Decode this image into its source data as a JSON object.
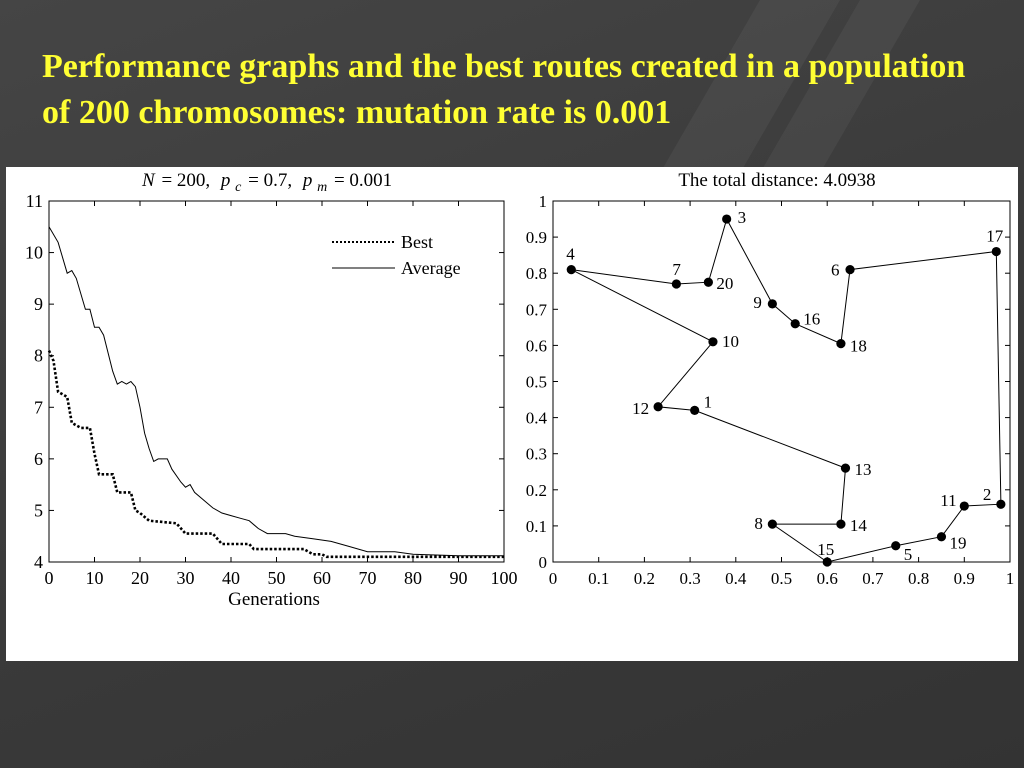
{
  "slide": {
    "title": "Performance graphs and the best routes created in a population of 200 chromosomes: mutation rate is 0.001",
    "title_color": "#ffff33",
    "background_color": "#3c3c3c"
  },
  "chart_data": [
    {
      "type": "line",
      "title_parts": {
        "N": "N",
        "eq_n": "= 200,",
        "pc_p": "p",
        "pc_sub": "c",
        "eq_pc": "= 0.7,",
        "pm_p": "p",
        "pm_sub": "m",
        "eq_pm": "= 0.001"
      },
      "xlabel": "Generations",
      "ylabel": "",
      "xlim": [
        0,
        100
      ],
      "ylim": [
        4,
        11
      ],
      "xticks": [
        0,
        10,
        20,
        30,
        40,
        50,
        60,
        70,
        80,
        90,
        100
      ],
      "yticks": [
        4,
        5,
        6,
        7,
        8,
        9,
        10,
        11
      ],
      "grid": false,
      "legend_position": "top-right",
      "series": [
        {
          "name": "Best",
          "style": "dotted",
          "points": [
            [
              0,
              8.1
            ],
            [
              1,
              7.9
            ],
            [
              2,
              7.3
            ],
            [
              4,
              7.2
            ],
            [
              5,
              6.7
            ],
            [
              7,
              6.6
            ],
            [
              9,
              6.6
            ],
            [
              10,
              6.1
            ],
            [
              11,
              5.7
            ],
            [
              14,
              5.7
            ],
            [
              15,
              5.35
            ],
            [
              18,
              5.35
            ],
            [
              19,
              5.0
            ],
            [
              20,
              4.95
            ],
            [
              22,
              4.8
            ],
            [
              28,
              4.75
            ],
            [
              30,
              4.55
            ],
            [
              36,
              4.55
            ],
            [
              38,
              4.35
            ],
            [
              44,
              4.35
            ],
            [
              45,
              4.25
            ],
            [
              56,
              4.25
            ],
            [
              58,
              4.15
            ],
            [
              60,
              4.15
            ],
            [
              61,
              4.1
            ],
            [
              100,
              4.1
            ]
          ]
        },
        {
          "name": "Average",
          "style": "solid",
          "points": [
            [
              0,
              10.5
            ],
            [
              2,
              10.2
            ],
            [
              4,
              9.6
            ],
            [
              5,
              9.65
            ],
            [
              6,
              9.5
            ],
            [
              8,
              8.9
            ],
            [
              9,
              8.9
            ],
            [
              10,
              8.55
            ],
            [
              11,
              8.55
            ],
            [
              12,
              8.4
            ],
            [
              14,
              7.7
            ],
            [
              15,
              7.45
            ],
            [
              16,
              7.5
            ],
            [
              17,
              7.45
            ],
            [
              18,
              7.5
            ],
            [
              19,
              7.4
            ],
            [
              20,
              7.0
            ],
            [
              21,
              6.5
            ],
            [
              22,
              6.2
            ],
            [
              23,
              5.95
            ],
            [
              24,
              6.0
            ],
            [
              26,
              6.0
            ],
            [
              27,
              5.8
            ],
            [
              29,
              5.55
            ],
            [
              30,
              5.45
            ],
            [
              31,
              5.5
            ],
            [
              32,
              5.35
            ],
            [
              34,
              5.2
            ],
            [
              36,
              5.05
            ],
            [
              38,
              4.95
            ],
            [
              40,
              4.9
            ],
            [
              42,
              4.85
            ],
            [
              44,
              4.8
            ],
            [
              46,
              4.65
            ],
            [
              48,
              4.55
            ],
            [
              52,
              4.55
            ],
            [
              54,
              4.5
            ],
            [
              58,
              4.45
            ],
            [
              62,
              4.4
            ],
            [
              66,
              4.3
            ],
            [
              70,
              4.2
            ],
            [
              76,
              4.2
            ],
            [
              80,
              4.15
            ],
            [
              90,
              4.12
            ],
            [
              100,
              4.12
            ]
          ]
        }
      ]
    },
    {
      "type": "scatter",
      "title": "The total distance: 4.0938",
      "xlabel": "",
      "ylabel": "",
      "xlim": [
        0,
        1
      ],
      "ylim": [
        0,
        1
      ],
      "xticks": [
        "0",
        "0.1",
        "0.2",
        "0.3",
        "0.4",
        "0.5",
        "0.6",
        "0.7",
        "0.8",
        "0.9",
        "1"
      ],
      "yticks": [
        "0",
        "0.1",
        "0.2",
        "0.3",
        "0.4",
        "0.5",
        "0.6",
        "0.7",
        "0.8",
        "0.9",
        "1"
      ],
      "grid": false,
      "cities": [
        {
          "id": "1",
          "x": 0.31,
          "y": 0.42
        },
        {
          "id": "2",
          "x": 0.98,
          "y": 0.16
        },
        {
          "id": "3",
          "x": 0.38,
          "y": 0.95
        },
        {
          "id": "4",
          "x": 0.04,
          "y": 0.81
        },
        {
          "id": "5",
          "x": 0.75,
          "y": 0.045
        },
        {
          "id": "6",
          "x": 0.65,
          "y": 0.81
        },
        {
          "id": "7",
          "x": 0.27,
          "y": 0.77
        },
        {
          "id": "8",
          "x": 0.48,
          "y": 0.105
        },
        {
          "id": "9",
          "x": 0.48,
          "y": 0.715
        },
        {
          "id": "10",
          "x": 0.35,
          "y": 0.61
        },
        {
          "id": "11",
          "x": 0.9,
          "y": 0.155
        },
        {
          "id": "12",
          "x": 0.23,
          "y": 0.43
        },
        {
          "id": "13",
          "x": 0.64,
          "y": 0.26
        },
        {
          "id": "14",
          "x": 0.63,
          "y": 0.105
        },
        {
          "id": "15",
          "x": 0.6,
          "y": 0.0
        },
        {
          "id": "16",
          "x": 0.53,
          "y": 0.66
        },
        {
          "id": "17",
          "x": 0.97,
          "y": 0.86
        },
        {
          "id": "18",
          "x": 0.63,
          "y": 0.605
        },
        {
          "id": "19",
          "x": 0.85,
          "y": 0.07
        },
        {
          "id": "20",
          "x": 0.34,
          "y": 0.775
        }
      ],
      "route": [
        "1",
        "12",
        "10",
        "4",
        "7",
        "20",
        "3",
        "9",
        "16",
        "18",
        "6",
        "17",
        "2",
        "11",
        "19",
        "5",
        "15",
        "8",
        "14",
        "13",
        "1"
      ]
    }
  ]
}
